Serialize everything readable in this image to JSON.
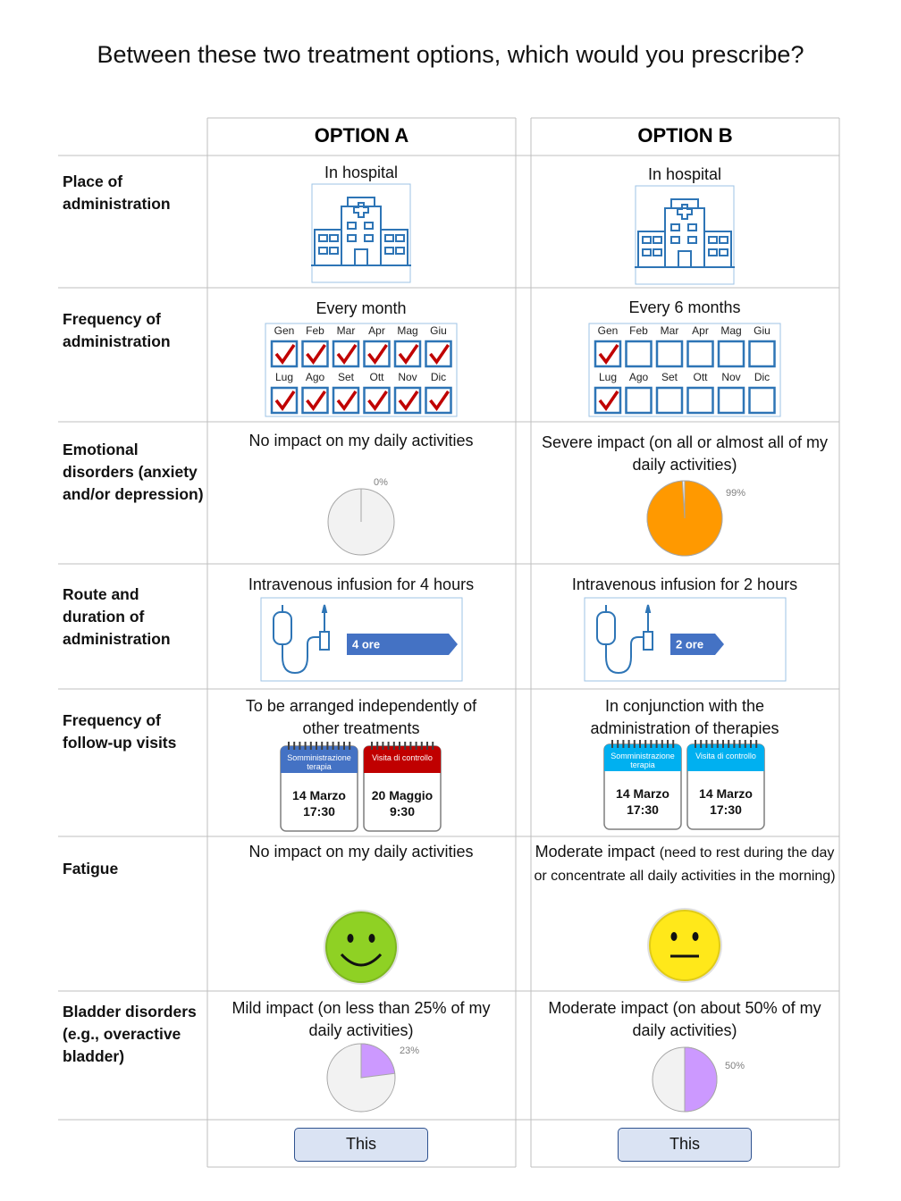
{
  "title": "Between these two treatment options, which would you prescribe?",
  "months": [
    "Gen",
    "Feb",
    "Mar",
    "Apr",
    "Mag",
    "Giu",
    "Lug",
    "Ago",
    "Set",
    "Ott",
    "Nov",
    "Dic"
  ],
  "options": [
    {
      "name": "OPTION A",
      "button": "This"
    },
    {
      "name": "OPTION B",
      "button": "This"
    }
  ],
  "rows": [
    {
      "label": "Place of administration",
      "cells": [
        {
          "text": "In hospital",
          "icon": "hospital"
        },
        {
          "text": "In hospital",
          "icon": "hospital"
        }
      ]
    },
    {
      "label": "Frequency of administration",
      "cells": [
        {
          "text": "Every month",
          "icon": "calendar",
          "checked": [
            true,
            true,
            true,
            true,
            true,
            true,
            true,
            true,
            true,
            true,
            true,
            true
          ]
        },
        {
          "text": "Every 6 months",
          "icon": "calendar",
          "checked": [
            true,
            false,
            false,
            false,
            false,
            false,
            true,
            false,
            false,
            false,
            false,
            false
          ]
        }
      ]
    },
    {
      "label": "Emotional disorders (anxiety and/or depression)",
      "cells": [
        {
          "text": "No impact on my daily activities",
          "icon": "pie",
          "value": 0,
          "value_label": "0%"
        },
        {
          "text": "Severe impact (on all or almost all of my daily activities)",
          "icon": "pie",
          "value": 99,
          "value_label": "99%",
          "color": "#ff9900"
        }
      ]
    },
    {
      "label": "Route and duration of administration",
      "cells": [
        {
          "text": "Intravenous infusion for 4 hours",
          "icon": "infusion",
          "duration": "4 ore"
        },
        {
          "text": "Intravenous infusion for 2 hours",
          "icon": "infusion",
          "duration": "2 ore"
        }
      ]
    },
    {
      "label": "Frequency of follow-up visits",
      "cells": [
        {
          "text": "To be arranged independently of other treatments",
          "icon": "visits",
          "visits": [
            {
              "title": "Somministrazione terapia",
              "date": "14 Marzo",
              "time": "17:30",
              "color": "#4472c4"
            },
            {
              "title": "Visita di controllo",
              "date": "20 Maggio",
              "time": "9:30",
              "color": "#c00000"
            }
          ]
        },
        {
          "text": "In conjunction with the administration of therapies",
          "icon": "visits",
          "visits": [
            {
              "title": "Somministrazione terapia",
              "date": "14 Marzo",
              "time": "17:30",
              "color": "#00b0f0"
            },
            {
              "title": "Visita di controllo",
              "date": "14 Marzo",
              "time": "17:30",
              "color": "#00b0f0"
            }
          ]
        }
      ]
    },
    {
      "label": "Fatigue",
      "cells": [
        {
          "text": "No impact on my daily activities",
          "icon": "face",
          "face": "smile",
          "color": "#8fd124"
        },
        {
          "text": "Moderate impact",
          "detail": "(need to rest during the day or concentrate all daily activities in the morning)",
          "icon": "face",
          "face": "neutral",
          "color": "#ffe81a"
        }
      ]
    },
    {
      "label": "Bladder disorders (e.g., overactive bladder)",
      "cells": [
        {
          "text": "Mild impact (on less than 25% of my daily activities)",
          "icon": "pie",
          "value": 23,
          "value_label": "23%",
          "color": "#cc99ff"
        },
        {
          "text": "Moderate impact (on about 50% of my daily activities)",
          "icon": "pie",
          "value": 50,
          "value_label": "50%",
          "color": "#cc99ff"
        }
      ]
    }
  ]
}
